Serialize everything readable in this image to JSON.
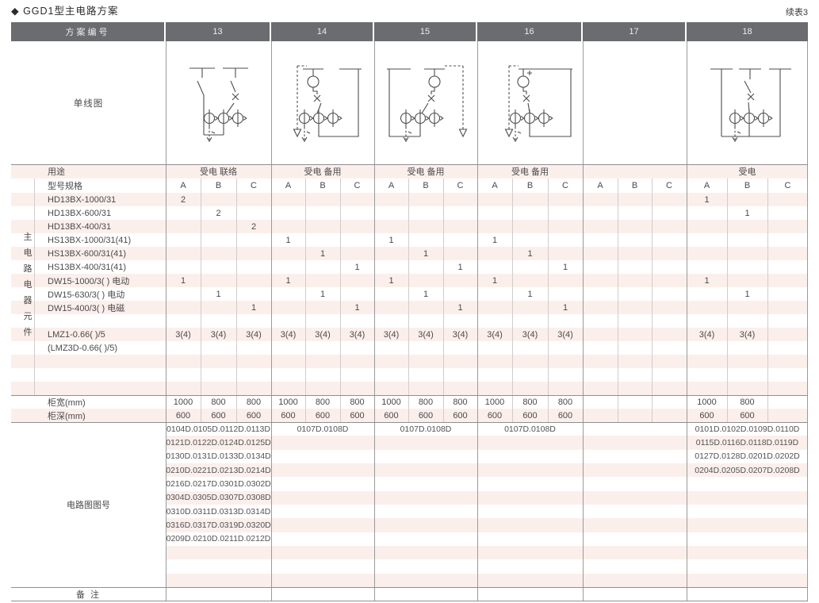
{
  "title": "◆ GGD1型主电路方案",
  "continuation_note": "续表3",
  "header": {
    "label": "方案编号",
    "schemes": [
      "13",
      "14",
      "15",
      "16",
      "17",
      "18"
    ]
  },
  "diagram_row_label": "单线图",
  "diagrams": [
    "single-line-diagram-scheme-13",
    "single-line-diagram-scheme-14",
    "single-line-diagram-scheme-15",
    "single-line-diagram-scheme-16",
    "",
    "single-line-diagram-scheme-18"
  ],
  "usage_row": {
    "label": "用途",
    "values": [
      "受电 联络",
      "受电 备用",
      "受电 备用",
      "受电 备用",
      "",
      "受电"
    ]
  },
  "spec_header": {
    "label": "型号规格",
    "subcolumns": [
      "A",
      "B",
      "C"
    ]
  },
  "side_label": "主电路电器元件",
  "spec_rows": [
    {
      "label": "HD13BX-1000/31",
      "values": [
        "2",
        "",
        "",
        "",
        "",
        "",
        "",
        "",
        "",
        "",
        "",
        "",
        "",
        "",
        "",
        "1",
        "",
        ""
      ]
    },
    {
      "label": "HD13BX-600/31",
      "values": [
        "",
        "2",
        "",
        "",
        "",
        "",
        "",
        "",
        "",
        "",
        "",
        "",
        "",
        "",
        "",
        "",
        "1",
        ""
      ]
    },
    {
      "label": "HD13BX-400/31",
      "values": [
        "",
        "",
        "2",
        "",
        "",
        "",
        "",
        "",
        "",
        "",
        "",
        "",
        "",
        "",
        "",
        "",
        "",
        ""
      ]
    },
    {
      "label": "HS13BX-1000/31(41)",
      "values": [
        "",
        "",
        "",
        "1",
        "",
        "",
        "1",
        "",
        "",
        "1",
        "",
        "",
        "",
        "",
        "",
        "",
        "",
        ""
      ]
    },
    {
      "label": "HS13BX-600/31(41)",
      "values": [
        "",
        "",
        "",
        "",
        "1",
        "",
        "",
        "1",
        "",
        "",
        "1",
        "",
        "",
        "",
        "",
        "",
        "",
        ""
      ]
    },
    {
      "label": "HS13BX-400/31(41)",
      "values": [
        "",
        "",
        "",
        "",
        "",
        "1",
        "",
        "",
        "1",
        "",
        "",
        "1",
        "",
        "",
        "",
        "",
        "",
        ""
      ]
    },
    {
      "label": "DW15-1000/3( )  电动",
      "values": [
        "1",
        "",
        "",
        "1",
        "",
        "",
        "1",
        "",
        "",
        "1",
        "",
        "",
        "",
        "",
        "",
        "1",
        "",
        ""
      ]
    },
    {
      "label": "DW15-630/3( )  电动",
      "values": [
        "",
        "1",
        "",
        "",
        "1",
        "",
        "",
        "1",
        "",
        "",
        "1",
        "",
        "",
        "",
        "",
        "",
        "1",
        ""
      ]
    },
    {
      "label": "DW15-400/3( )  电磁",
      "values": [
        "",
        "",
        "1",
        "",
        "",
        "1",
        "",
        "",
        "1",
        "",
        "",
        "1",
        "",
        "",
        "",
        "",
        "",
        ""
      ]
    },
    {
      "label": "",
      "values": [
        "",
        "",
        "",
        "",
        "",
        "",
        "",
        "",
        "",
        "",
        "",
        "",
        "",
        "",
        "",
        "",
        "",
        ""
      ]
    },
    {
      "label": "LMZ1-0.66( )/5",
      "values": [
        "3(4)",
        "3(4)",
        "3(4)",
        "3(4)",
        "3(4)",
        "3(4)",
        "3(4)",
        "3(4)",
        "3(4)",
        "3(4)",
        "3(4)",
        "3(4)",
        "",
        "",
        "",
        "3(4)",
        "3(4)",
        ""
      ]
    },
    {
      "label": "(LMZ3D-0.66( )/5)",
      "values": [
        "",
        "",
        "",
        "",
        "",
        "",
        "",
        "",
        "",
        "",
        "",
        "",
        "",
        "",
        "",
        "",
        "",
        ""
      ]
    },
    {
      "label": "",
      "values": [
        "",
        "",
        "",
        "",
        "",
        "",
        "",
        "",
        "",
        "",
        "",
        "",
        "",
        "",
        "",
        "",
        "",
        ""
      ]
    },
    {
      "label": "",
      "values": [
        "",
        "",
        "",
        "",
        "",
        "",
        "",
        "",
        "",
        "",
        "",
        "",
        "",
        "",
        "",
        "",
        "",
        ""
      ]
    },
    {
      "label": "",
      "values": [
        "",
        "",
        "",
        "",
        "",
        "",
        "",
        "",
        "",
        "",
        "",
        "",
        "",
        "",
        "",
        "",
        "",
        ""
      ]
    },
    {
      "label": "柜宽(mm)",
      "values": [
        "1000",
        "800",
        "800",
        "1000",
        "800",
        "800",
        "1000",
        "800",
        "800",
        "1000",
        "800",
        "800",
        "",
        "",
        "",
        "1000",
        "800",
        ""
      ]
    },
    {
      "label": "柜深(mm)",
      "values": [
        "600",
        "600",
        "600",
        "600",
        "600",
        "600",
        "600",
        "600",
        "600",
        "600",
        "600",
        "600",
        "",
        "",
        "",
        "600",
        "600",
        ""
      ]
    }
  ],
  "circuit_numbers": {
    "label": "电路图图号",
    "columns": [
      [
        "0104D.0105D.0112D.0113D",
        "0121D.0122D.0124D.0125D",
        "0130D.0131D.0133D.0134D",
        "0210D.0221D.0213D.0214D",
        "0216D.0217D.0301D.0302D",
        "0304D.0305D.0307D.0308D",
        "0310D.0311D.0313D.0314D",
        "0316D.0317D.0319D.0320D",
        "0209D.0210D.0211D.0212D"
      ],
      [
        "0107D.0108D"
      ],
      [
        "0107D.0108D"
      ],
      [
        "0107D.0108D"
      ],
      [],
      [
        "0101D.0102D.0109D.0110D",
        "0115D.0116D.0118D.0119D",
        "0127D.0128D.0201D.0202D",
        "0204D.0205D.0207D.0208D"
      ]
    ]
  },
  "remarks_row": {
    "label": "备 注"
  },
  "colors": {
    "stripe_pink": "#fbefec",
    "header_gray": "#6b6c70"
  }
}
